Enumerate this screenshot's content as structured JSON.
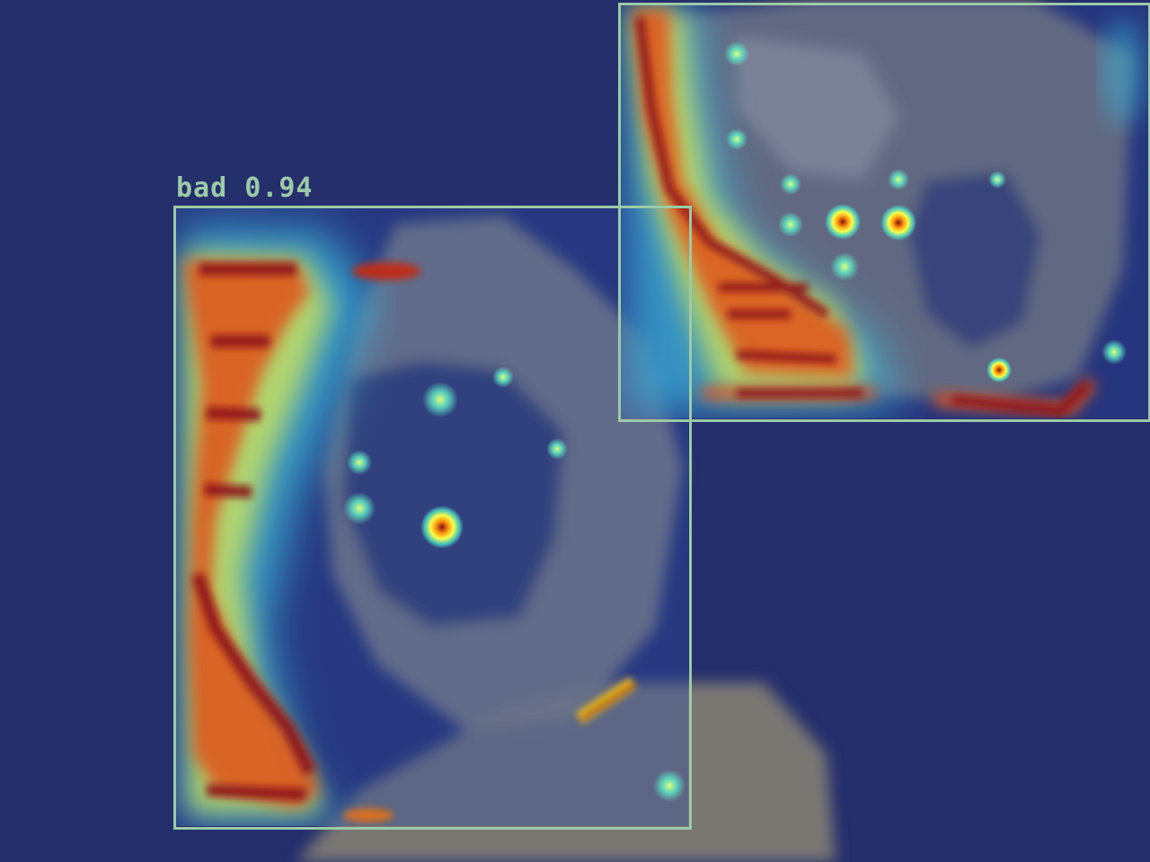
{
  "image": {
    "subject": "crystal-cluster-heatmap-overlay",
    "background_color": "#252f6c",
    "box_color": "#9ccaa8"
  },
  "detections": [
    {
      "label": "bad 0.94",
      "class": "bad",
      "confidence": 0.94,
      "label_visible": true
    },
    {
      "label": "",
      "label_visible": false
    }
  ]
}
